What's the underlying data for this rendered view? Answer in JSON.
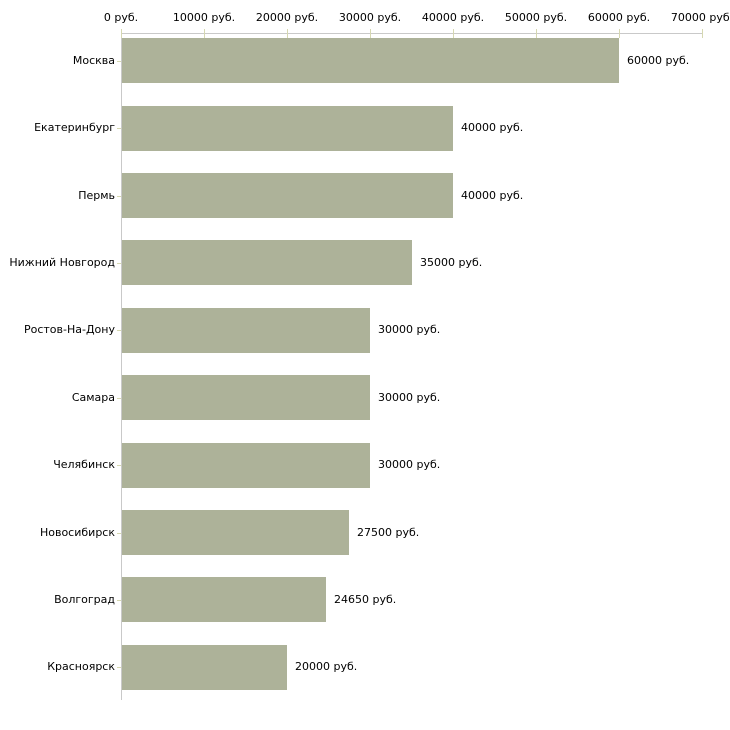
{
  "chart_data": {
    "type": "bar",
    "orientation": "horizontal",
    "title": "",
    "xlabel": "",
    "ylabel": "",
    "unit": "руб.",
    "categories": [
      "Москва",
      "Екатеринбург",
      "Пермь",
      "Нижний Новгород",
      "Ростов-На-Дону",
      "Самара",
      "Челябинск",
      "Новосибирск",
      "Волгоград",
      "Красноярск"
    ],
    "values": [
      60000,
      40000,
      40000,
      35000,
      30000,
      30000,
      30000,
      27500,
      24650,
      20000
    ],
    "value_labels": [
      "60000 руб.",
      "40000 руб.",
      "40000 руб.",
      "35000 руб.",
      "30000 руб.",
      "30000 руб.",
      "30000 руб.",
      "27500 руб.",
      "24650 руб.",
      "20000 руб."
    ],
    "x_ticks": [
      0,
      10000,
      20000,
      30000,
      40000,
      50000,
      60000,
      70000
    ],
    "x_tick_labels": [
      "0 руб.",
      "10000 руб.",
      "20000 руб.",
      "30000 руб.",
      "40000 руб.",
      "50000 руб.",
      "60000 руб.",
      "70000 руб."
    ],
    "xlim": [
      0,
      70000
    ],
    "grid": false,
    "legend": false,
    "colors": {
      "bar": "#adb299",
      "tick": "#d6d8b1",
      "axis": "#c9c9c9",
      "text": "#000000",
      "background": "#ffffff"
    }
  }
}
